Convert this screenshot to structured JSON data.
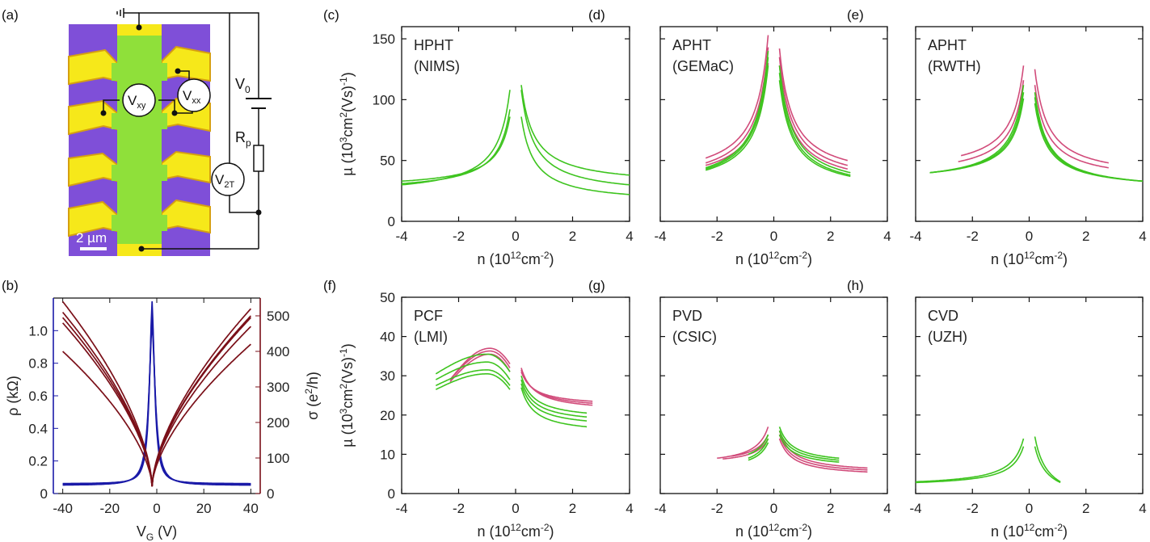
{
  "panel_labels": {
    "a": "(a)",
    "b": "(b)",
    "c": "(c)",
    "d": "(d)",
    "e": "(e)",
    "f": "(f)",
    "g": "(g)",
    "h": "(h)"
  },
  "device": {
    "vxy": "V",
    "vxy_sub": "xy",
    "vxx": "V",
    "vxx_sub": "xx",
    "v0": "V",
    "v0_sub": "0",
    "rp": "R",
    "rp_sub": "p",
    "v2t": "V",
    "v2t_sub": "2T",
    "scale_bar": "2 µm"
  },
  "colors": {
    "green": "#3ec41f",
    "pink": "#d14b7a",
    "blue": "#1a1aa8",
    "darkred": "#7a0f18",
    "nims": "#111111",
    "gemac": "#3ec41f",
    "rwth": "#f2551c",
    "lmi": "#3fa3e0",
    "csic": "#6a6af0",
    "uzh": "#808080"
  },
  "mobility_axes": {
    "xlabel": "n (10",
    "xlabel_sup": "12",
    "xlabel_unit": "cm",
    "xlabel_unit_sup": "-2",
    "xlabel_end": ")",
    "ylabel": "µ (10",
    "ylabel_sup": "3",
    "ylabel_unit": "cm",
    "ylabel_unit_sup": "2",
    "ylabel_tail": "(Vs)",
    "ylabel_tail_sup": "-1",
    "ylabel_end": ")",
    "x_ticks": [
      "-4",
      "-2",
      "0",
      "2",
      "4"
    ],
    "top_y_ticks": [
      "0",
      "50",
      "100",
      "150"
    ],
    "bottom_y_ticks": [
      "0",
      "10",
      "20",
      "30",
      "40",
      "50"
    ]
  },
  "chart_data": [
    {
      "id": "b",
      "type": "line",
      "xlabel": "V",
      "xlabel_sub": "G",
      "xlabel_unit": "(V)",
      "ylabel_left": "ρ (kΩ)",
      "ylabel_right": "σ (e",
      "ylabel_right_sup": "2",
      "ylabel_right_end": "/h)",
      "xlim": [
        -44,
        44
      ],
      "ylim_left": [
        0,
        1.2
      ],
      "ylim_right": [
        0,
        550
      ],
      "x_ticks": [
        "-40",
        "-20",
        "0",
        "20",
        "40"
      ],
      "y_left_ticks": [
        "0",
        "0.2",
        "0.4",
        "0.6",
        "0.8",
        "1.0"
      ],
      "y_right_ticks": [
        "0",
        "100",
        "200",
        "300",
        "400",
        "500"
      ],
      "series": [
        {
          "name": "rho_1",
          "axis": "left",
          "v0": -2,
          "peak": 1.18,
          "scale": 1.3,
          "floor": 0.06
        },
        {
          "name": "rho_2",
          "axis": "left",
          "v0": -2,
          "peak": 1.12,
          "scale": 1.5,
          "floor": 0.055
        },
        {
          "name": "rho_3",
          "axis": "left",
          "v0": -2,
          "peak": 1.05,
          "scale": 1.7,
          "floor": 0.05
        },
        {
          "name": "sigma_1",
          "axis": "right",
          "v0": -2,
          "min": 20,
          "left_end": 540,
          "right_end": 500
        },
        {
          "name": "sigma_2",
          "axis": "right",
          "v0": -2,
          "min": 20,
          "left_end": 510,
          "right_end": 520
        },
        {
          "name": "sigma_3",
          "axis": "right",
          "v0": -2,
          "min": 20,
          "left_end": 495,
          "right_end": 495
        },
        {
          "name": "sigma_4",
          "axis": "right",
          "v0": -2,
          "min": 20,
          "left_end": 480,
          "right_end": 470
        },
        {
          "name": "sigma_5",
          "axis": "right",
          "v0": -2,
          "min": 20,
          "left_end": 400,
          "right_end": 420
        }
      ]
    },
    {
      "id": "c",
      "type": "line",
      "title": "HPHT",
      "subtitle": "(NIMS)",
      "label_color": "nims",
      "xlim": [
        -4,
        4
      ],
      "ylim": [
        0,
        160
      ],
      "series": [
        {
          "color": "green",
          "left": {
            "from": -4,
            "to": -0.2,
            "A": 31,
            "B": 92
          },
          "right": {
            "from": 0.2,
            "to": 4,
            "A": 112,
            "B": 38
          }
        },
        {
          "color": "green",
          "left": {
            "from": -4,
            "to": -0.2,
            "A": 33,
            "B": 86
          },
          "right": {
            "from": 0.2,
            "to": 4,
            "A": 108,
            "B": 30
          }
        },
        {
          "color": "green",
          "left": {
            "from": -4,
            "to": -0.2,
            "A": 30,
            "B": 108
          },
          "right": {
            "from": 0.2,
            "to": 4,
            "A": 86,
            "B": 22
          }
        }
      ]
    },
    {
      "id": "d",
      "type": "line",
      "title": "APHT",
      "subtitle": "(GEMaC)",
      "label_color": "gemac",
      "xlim": [
        -4,
        4
      ],
      "ylim": [
        0,
        160
      ],
      "series": [
        {
          "color": "pink",
          "left": {
            "from": -2.4,
            "to": -0.2,
            "A": 52,
            "B": 153
          },
          "right": {
            "from": 0.2,
            "to": 2.6,
            "A": 142,
            "B": 50
          }
        },
        {
          "color": "pink",
          "left": {
            "from": -2.4,
            "to": -0.2,
            "A": 48,
            "B": 143
          },
          "right": {
            "from": 0.2,
            "to": 2.6,
            "A": 135,
            "B": 46
          }
        },
        {
          "color": "pink",
          "left": {
            "from": -2.4,
            "to": -0.2,
            "A": 46,
            "B": 130
          },
          "right": {
            "from": 0.2,
            "to": 2.6,
            "A": 128,
            "B": 43
          }
        },
        {
          "color": "green",
          "left": {
            "from": -2.4,
            "to": -0.2,
            "A": 44,
            "B": 140
          },
          "right": {
            "from": 0.2,
            "to": 2.7,
            "A": 128,
            "B": 40
          }
        },
        {
          "color": "green",
          "left": {
            "from": -2.4,
            "to": -0.2,
            "A": 43,
            "B": 135
          },
          "right": {
            "from": 0.2,
            "to": 2.7,
            "A": 122,
            "B": 38
          }
        },
        {
          "color": "green",
          "left": {
            "from": -2.4,
            "to": -0.2,
            "A": 42,
            "B": 128
          },
          "right": {
            "from": 0.2,
            "to": 2.7,
            "A": 116,
            "B": 37
          }
        }
      ]
    },
    {
      "id": "e",
      "type": "line",
      "title": "APHT",
      "subtitle": "(RWTH)",
      "label_color": "rwth",
      "xlim": [
        -4,
        4
      ],
      "ylim": [
        0,
        160
      ],
      "series": [
        {
          "color": "pink",
          "left": {
            "from": -2.4,
            "to": -0.2,
            "A": 54,
            "B": 128
          },
          "right": {
            "from": 0.2,
            "to": 2.8,
            "A": 125,
            "B": 48
          }
        },
        {
          "color": "pink",
          "left": {
            "from": -2.5,
            "to": -0.2,
            "A": 49,
            "B": 116
          },
          "right": {
            "from": 0.2,
            "to": 2.8,
            "A": 112,
            "B": 44
          }
        },
        {
          "color": "green",
          "left": {
            "from": -3.5,
            "to": -0.2,
            "A": 40,
            "B": 112
          },
          "right": {
            "from": 0.2,
            "to": 4,
            "A": 106,
            "B": 33
          }
        },
        {
          "color": "green",
          "left": {
            "from": -3.5,
            "to": -0.2,
            "A": 40,
            "B": 106
          },
          "right": {
            "from": 0.2,
            "to": 4,
            "A": 102,
            "B": 33
          }
        },
        {
          "color": "green",
          "left": {
            "from": -3.5,
            "to": -0.2,
            "A": 40,
            "B": 101
          },
          "right": {
            "from": 0.2,
            "to": 4,
            "A": 97,
            "B": 33
          }
        }
      ]
    },
    {
      "id": "f",
      "type": "line",
      "title": "PCF",
      "subtitle": "(LMI)",
      "label_color": "lmi",
      "xlim": [
        -4,
        4
      ],
      "ylim": [
        0,
        50
      ],
      "series": [
        {
          "color": "pink",
          "left": {
            "from": -2.3,
            "to": -0.2,
            "A": 29,
            "B": 33,
            "peak": 37,
            "peakAt": -0.9
          },
          "right": {
            "from": 0.2,
            "to": 2.7,
            "A": 32,
            "B": 22.5
          }
        },
        {
          "color": "pink",
          "left": {
            "from": -2.3,
            "to": -0.2,
            "A": 29,
            "B": 32,
            "peak": 36.3,
            "peakAt": -0.9
          },
          "right": {
            "from": 0.2,
            "to": 2.7,
            "A": 31.5,
            "B": 23
          }
        },
        {
          "color": "pink",
          "left": {
            "from": -2.3,
            "to": -0.2,
            "A": 28.5,
            "B": 31,
            "peak": 35.5,
            "peakAt": -0.9
          },
          "right": {
            "from": 0.2,
            "to": 2.7,
            "A": 31,
            "B": 23.5
          }
        },
        {
          "color": "green",
          "left": {
            "from": -2.8,
            "to": -0.2,
            "A": 30.5,
            "B": 31,
            "peak": 35.5,
            "peakAt": -1.0
          },
          "right": {
            "from": 0.2,
            "to": 2.5,
            "A": 30,
            "B": 20.5
          }
        },
        {
          "color": "green",
          "left": {
            "from": -2.8,
            "to": -0.2,
            "A": 29,
            "B": 29,
            "peak": 33.5,
            "peakAt": -1.0
          },
          "right": {
            "from": 0.2,
            "to": 2.5,
            "A": 29,
            "B": 19.5
          }
        },
        {
          "color": "green",
          "left": {
            "from": -2.8,
            "to": -0.2,
            "A": 27.5,
            "B": 27.5,
            "peak": 31.5,
            "peakAt": -1.0
          },
          "right": {
            "from": 0.2,
            "to": 2.5,
            "A": 28,
            "B": 18.5
          }
        },
        {
          "color": "green",
          "left": {
            "from": -2.8,
            "to": -0.2,
            "A": 26.5,
            "B": 26.5,
            "peak": 30.5,
            "peakAt": -1.0
          },
          "right": {
            "from": 0.2,
            "to": 2.5,
            "A": 27,
            "B": 17
          }
        }
      ]
    },
    {
      "id": "g",
      "type": "line",
      "title": "PVD",
      "subtitle": "(CSIC)",
      "label_color": "csic",
      "xlim": [
        -4,
        4
      ],
      "ylim": [
        0,
        50
      ],
      "series": [
        {
          "color": "pink",
          "left": {
            "from": -2.0,
            "to": -0.2,
            "A": 9,
            "B": 17
          },
          "right": {
            "from": 0.2,
            "to": 3.3,
            "A": 16,
            "B": 6.5
          }
        },
        {
          "color": "pink",
          "left": {
            "from": -1.5,
            "to": -0.2,
            "A": 9.5,
            "B": 15
          },
          "right": {
            "from": 0.2,
            "to": 3.3,
            "A": 15,
            "B": 6
          }
        },
        {
          "color": "pink",
          "left": {
            "from": -1.8,
            "to": -0.2,
            "A": 8.8,
            "B": 14
          },
          "right": {
            "from": 0.2,
            "to": 3.3,
            "A": 14,
            "B": 5.5
          }
        },
        {
          "color": "green",
          "left": {
            "from": -0.9,
            "to": -0.2,
            "A": 10,
            "B": 15
          },
          "right": {
            "from": 0.2,
            "to": 2.3,
            "A": 17,
            "B": 9
          }
        },
        {
          "color": "green",
          "left": {
            "from": -0.9,
            "to": -0.2,
            "A": 9,
            "B": 14
          },
          "right": {
            "from": 0.2,
            "to": 2.3,
            "A": 16,
            "B": 8.5
          }
        },
        {
          "color": "green",
          "left": {
            "from": -0.9,
            "to": -0.2,
            "A": 8.5,
            "B": 13
          },
          "right": {
            "from": 0.2,
            "to": 2.3,
            "A": 15,
            "B": 8
          }
        }
      ]
    },
    {
      "id": "h",
      "type": "line",
      "title": "CVD",
      "subtitle": "(UZH)",
      "label_color": "uzh",
      "xlim": [
        -4,
        4
      ],
      "ylim": [
        0,
        50
      ],
      "series": [
        {
          "color": "green",
          "left": {
            "from": -4,
            "to": -0.2,
            "A": 3,
            "B": 14
          },
          "right": {
            "from": 0.2,
            "to": 1.1,
            "A": 14.5,
            "B": 3
          }
        },
        {
          "color": "green",
          "left": {
            "from": -4,
            "to": -0.2,
            "A": 2.8,
            "B": 12
          },
          "right": {
            "from": 0.2,
            "to": 1.1,
            "A": 12,
            "B": 2.8
          }
        }
      ]
    }
  ]
}
